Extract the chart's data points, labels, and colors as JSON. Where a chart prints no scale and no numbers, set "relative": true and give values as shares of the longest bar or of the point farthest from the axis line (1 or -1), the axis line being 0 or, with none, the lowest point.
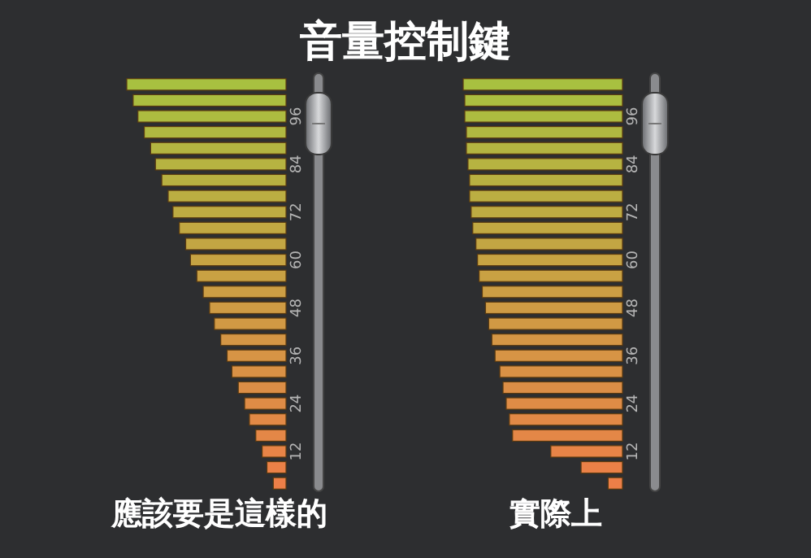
{
  "chart_data": [
    {
      "type": "bar",
      "orientation": "horizontal",
      "relative": true,
      "title": "音量控制鍵",
      "xlabel": "應該要是這樣的",
      "categories": [
        null,
        null,
        "96",
        null,
        null,
        "84",
        null,
        null,
        "72",
        null,
        null,
        "60",
        null,
        null,
        "48",
        null,
        null,
        "36",
        null,
        null,
        "24",
        null,
        null,
        "12",
        null,
        null
      ],
      "values": [
        1.0,
        0.96,
        0.93,
        0.89,
        0.85,
        0.82,
        0.78,
        0.74,
        0.71,
        0.67,
        0.63,
        0.6,
        0.56,
        0.52,
        0.48,
        0.45,
        0.41,
        0.37,
        0.34,
        0.3,
        0.26,
        0.23,
        0.19,
        0.15,
        0.12,
        0.08
      ],
      "colors": [
        "#a8c040",
        "#abbd40",
        "#adbb40",
        "#b0b841",
        "#b3b541",
        "#b6b341",
        "#b8b041",
        "#bbae42",
        "#beab42",
        "#c1a842",
        "#c3a643",
        "#c6a343",
        "#c9a143",
        "#cc9e44",
        "#ce9b44",
        "#d19944",
        "#d49645",
        "#d79445",
        "#d99145",
        "#dc8e46",
        "#df8c46",
        "#e18946",
        "#e48747",
        "#e78447",
        "#ea8147",
        "#ec7f48"
      ]
    },
    {
      "type": "bar",
      "orientation": "horizontal",
      "relative": true,
      "xlabel": "實際上",
      "categories": [
        null,
        null,
        "96",
        null,
        null,
        "84",
        null,
        null,
        "72",
        null,
        null,
        "60",
        null,
        null,
        "48",
        null,
        null,
        "36",
        null,
        null,
        "24",
        null,
        null,
        "12",
        null,
        null
      ],
      "values": [
        1.0,
        0.99,
        0.99,
        0.98,
        0.98,
        0.97,
        0.96,
        0.96,
        0.95,
        0.94,
        0.92,
        0.91,
        0.9,
        0.88,
        0.86,
        0.84,
        0.82,
        0.8,
        0.77,
        0.75,
        0.73,
        0.71,
        0.69,
        0.45,
        0.26,
        0.09
      ],
      "colors": [
        "#a8c040",
        "#abbd40",
        "#adbb40",
        "#b0b841",
        "#b3b541",
        "#b6b341",
        "#b8b041",
        "#bbae42",
        "#beab42",
        "#c1a842",
        "#c3a643",
        "#c6a343",
        "#c9a143",
        "#cc9e44",
        "#ce9b44",
        "#d19944",
        "#d49645",
        "#d79445",
        "#d99145",
        "#dc8e46",
        "#df8c46",
        "#e18946",
        "#e48747",
        "#e78447",
        "#ea8147",
        "#ec7f48"
      ]
    }
  ]
}
